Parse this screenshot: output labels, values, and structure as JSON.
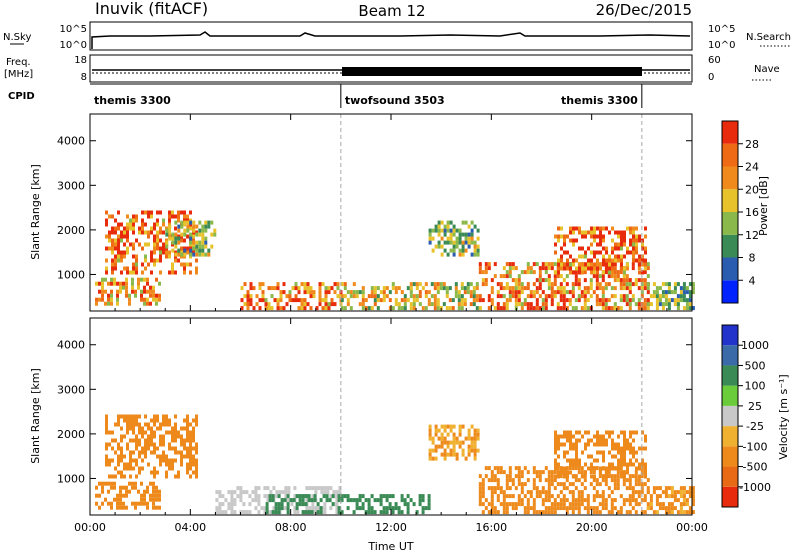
{
  "header": {
    "station": "Inuvik (fitACF)",
    "beam": "Beam 12",
    "date": "26/Dec/2015"
  },
  "control_panels": {
    "nsky": {
      "left_label": "N.Sky",
      "right_label": "N.Search",
      "left_ticks": [
        "10^5",
        "10^0"
      ],
      "right_ticks": [
        "10^5",
        "10^0"
      ]
    },
    "freq": {
      "left_label_1": "Freq.",
      "left_label_2": "[MHz]",
      "right_label": "Nave",
      "left_ticks": [
        "18",
        "8"
      ],
      "right_ticks": [
        "60",
        "0"
      ]
    },
    "cpid": {
      "label": "CPID",
      "segments": [
        {
          "name": "themis 3300",
          "start_hour": 0,
          "end_hour": 10
        },
        {
          "name": "twofsound 3503",
          "start_hour": 10,
          "end_hour": 22
        },
        {
          "name": "themis 3300",
          "start_hour": 22,
          "end_hour": 24
        }
      ]
    }
  },
  "colors": {
    "power_scale": [
      "#0022ff",
      "#2a5db0",
      "#3a8a55",
      "#8ab84a",
      "#e8c22a",
      "#f08a1c",
      "#ee6a14",
      "#e82b0c"
    ],
    "velocity_scale": [
      "#2233cc",
      "#3a6aa8",
      "#3a8a55",
      "#6acc3a",
      "#c8c8c8",
      "#f0b030",
      "#ee8a1c",
      "#e86a14",
      "#e82b0c"
    ]
  },
  "chart_data": [
    {
      "type": "heatmap",
      "panel": "power",
      "ylabel": "Slant Range [km]",
      "xlabel": "",
      "x_range_hours": [
        0,
        24
      ],
      "ylim": [
        180,
        4600
      ],
      "y_ticks": [
        "1000",
        "2000",
        "3000",
        "4000"
      ],
      "x_ticks": [
        "00:00",
        "04:00",
        "08:00",
        "12:00",
        "16:00",
        "20:00",
        "00:00"
      ],
      "colorbar": {
        "label": "Power [dB]",
        "ticks": [
          "4",
          "8",
          "12",
          "16",
          "20",
          "24",
          "28"
        ],
        "range": [
          0,
          32
        ]
      },
      "regions": [
        {
          "t0": 0.6,
          "t1": 4.2,
          "r0": 1000,
          "r1": 2400,
          "level": 26
        },
        {
          "t0": 0.2,
          "t1": 2.8,
          "r0": 300,
          "r1": 900,
          "level": 22
        },
        {
          "t0": 3.0,
          "t1": 5.0,
          "r0": 1400,
          "r1": 2200,
          "level": 14
        },
        {
          "t0": 6.0,
          "t1": 10.0,
          "r0": 200,
          "r1": 800,
          "level": 26
        },
        {
          "t0": 10.0,
          "t1": 15.5,
          "r0": 200,
          "r1": 800,
          "level": 18
        },
        {
          "t0": 13.5,
          "t1": 15.5,
          "r0": 1400,
          "r1": 2200,
          "level": 14
        },
        {
          "t0": 15.5,
          "t1": 22.2,
          "r0": 200,
          "r1": 1200,
          "level": 24
        },
        {
          "t0": 18.5,
          "t1": 22.2,
          "r0": 1000,
          "r1": 2000,
          "level": 26
        },
        {
          "t0": 22.2,
          "t1": 24.0,
          "r0": 200,
          "r1": 800,
          "level": 12
        }
      ]
    },
    {
      "type": "heatmap",
      "panel": "velocity",
      "ylabel": "Slant Range [km]",
      "xlabel": "Time UT",
      "x_range_hours": [
        0,
        24
      ],
      "ylim": [
        180,
        4600
      ],
      "y_ticks": [
        "1000",
        "2000",
        "3000",
        "4000"
      ],
      "x_ticks": [
        "00:00",
        "04:00",
        "08:00",
        "12:00",
        "16:00",
        "20:00",
        "00:00"
      ],
      "colorbar": {
        "label": "Velocity [m s⁻¹]",
        "ticks": [
          "1000",
          "500",
          "100",
          "25",
          "-25",
          "-100",
          "-500",
          "-1000"
        ]
      },
      "regions": [
        {
          "t0": 0.6,
          "t1": 4.2,
          "r0": 1000,
          "r1": 2400,
          "level": -150
        },
        {
          "t0": 0.2,
          "t1": 2.8,
          "r0": 300,
          "r1": 900,
          "level": -300
        },
        {
          "t0": 5.0,
          "t1": 10.0,
          "r0": 200,
          "r1": 800,
          "level": 0
        },
        {
          "t0": 7.0,
          "t1": 13.5,
          "r0": 200,
          "r1": 600,
          "level": 150
        },
        {
          "t0": 13.5,
          "t1": 15.5,
          "r0": 1400,
          "r1": 2200,
          "level": -100
        },
        {
          "t0": 15.5,
          "t1": 22.2,
          "r0": 200,
          "r1": 1200,
          "level": -200
        },
        {
          "t0": 18.5,
          "t1": 22.2,
          "r0": 1000,
          "r1": 2000,
          "level": -250
        },
        {
          "t0": 22.2,
          "t1": 24.0,
          "r0": 200,
          "r1": 800,
          "level": -120
        }
      ]
    }
  ]
}
